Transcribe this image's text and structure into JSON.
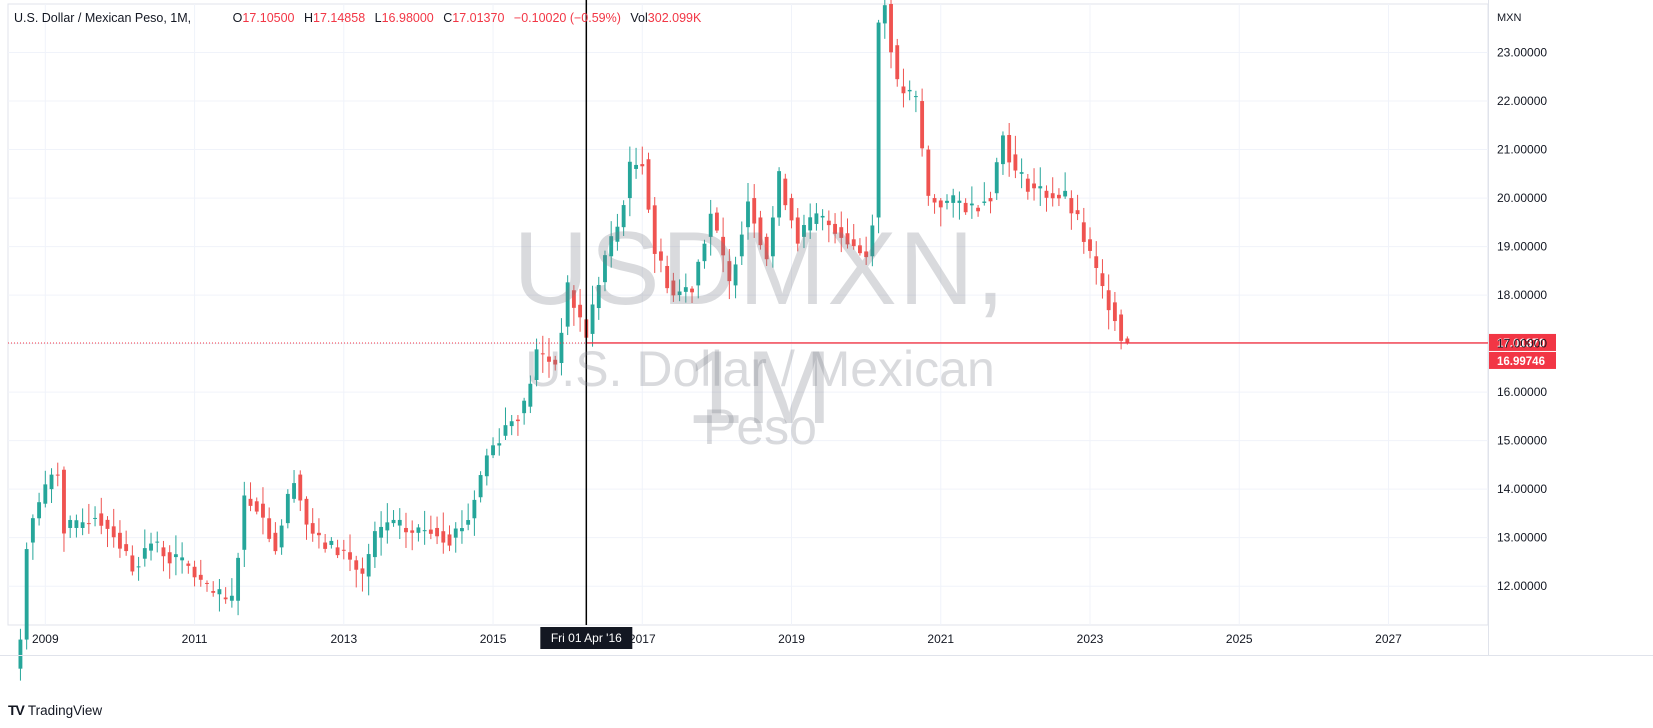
{
  "legend": {
    "symbol": "U.S. Dollar / Mexican Peso, 1M,",
    "open_label": "O",
    "open": "17.10500",
    "high_label": "H",
    "high": "17.14858",
    "low_label": "L",
    "low": "16.98000",
    "close_label": "C",
    "close": "17.01370",
    "change": "−0.10020 (−0.59%)",
    "vol_label": "Vol",
    "vol": "302.099K"
  },
  "watermark": {
    "symbol": "USDMXN, 1M",
    "description": "U.S. Dollar / Mexican Peso"
  },
  "currency": "MXN",
  "brand": {
    "logo": "TV",
    "name": "TradingView"
  },
  "colors": {
    "up": "#26a69a",
    "down": "#ef5350",
    "price_line": "#f23645",
    "grid": "#f0f3fa",
    "crosshair": "#000000"
  },
  "chart_data": {
    "type": "candlestick",
    "interval": "1M",
    "x_tick_labels": [
      "2009",
      "2011",
      "2013",
      "2015",
      "2017",
      "2019",
      "2021",
      "2023",
      "2025",
      "2027"
    ],
    "y_tick_labels": [
      "12.00000",
      "13.00000",
      "14.00000",
      "15.00000",
      "16.00000",
      "17.00000",
      "18.00000",
      "19.00000",
      "20.00000",
      "21.00000",
      "22.00000",
      "23.00000"
    ],
    "y_range": [
      11.2,
      24.0
    ],
    "x_range": [
      "2008-07",
      "2028-05"
    ],
    "price_line": {
      "value": 17.0137,
      "label": "17.01370"
    },
    "crosshair": {
      "date": "2016-04",
      "label": "Fri 01 Apr '16"
    },
    "secondary_label": {
      "value": 16.99746,
      "label": "16.99746"
    },
    "anchors": [
      [
        "2008-09",
        10.9
      ],
      [
        "2008-10",
        12.9
      ],
      [
        "2008-11",
        13.4
      ],
      [
        "2009-02",
        14.3
      ],
      [
        "2009-03",
        14.4
      ],
      [
        "2009-04",
        13.2
      ],
      [
        "2009-06",
        13.2
      ],
      [
        "2009-09",
        13.5
      ],
      [
        "2009-12",
        13.1
      ],
      [
        "2010-03",
        12.4
      ],
      [
        "2010-06",
        12.9
      ],
      [
        "2010-09",
        12.6
      ],
      [
        "2010-12",
        12.4
      ],
      [
        "2011-03",
        11.9
      ],
      [
        "2011-06",
        11.7
      ],
      [
        "2011-07",
        11.7
      ],
      [
        "2011-09",
        13.8
      ],
      [
        "2011-11",
        13.7
      ],
      [
        "2012-02",
        12.8
      ],
      [
        "2012-05",
        14.3
      ],
      [
        "2012-07",
        13.3
      ],
      [
        "2012-09",
        12.9
      ],
      [
        "2013-01",
        12.7
      ],
      [
        "2013-04",
        12.2
      ],
      [
        "2013-06",
        13.0
      ],
      [
        "2013-08",
        13.3
      ],
      [
        "2013-12",
        13.1
      ],
      [
        "2014-03",
        13.2
      ],
      [
        "2014-06",
        13.0
      ],
      [
        "2014-09",
        13.4
      ],
      [
        "2014-12",
        14.7
      ],
      [
        "2015-03",
        15.3
      ],
      [
        "2015-06",
        15.7
      ],
      [
        "2015-08",
        16.8
      ],
      [
        "2015-11",
        16.6
      ],
      [
        "2016-01",
        18.1
      ],
      [
        "2016-04",
        17.2
      ],
      [
        "2016-07",
        18.8
      ],
      [
        "2016-09",
        19.4
      ],
      [
        "2016-11",
        20.6
      ],
      [
        "2017-01",
        20.8
      ],
      [
        "2017-03",
        18.9
      ],
      [
        "2017-06",
        18.0
      ],
      [
        "2017-09",
        18.2
      ],
      [
        "2017-12",
        19.7
      ],
      [
        "2018-03",
        18.2
      ],
      [
        "2018-06",
        20.0
      ],
      [
        "2018-09",
        18.8
      ],
      [
        "2018-11",
        20.4
      ],
      [
        "2019-02",
        19.2
      ],
      [
        "2019-05",
        19.6
      ],
      [
        "2019-08",
        19.4
      ],
      [
        "2019-12",
        18.9
      ],
      [
        "2020-01",
        18.8
      ],
      [
        "2020-02",
        19.6
      ],
      [
        "2020-03",
        23.6
      ],
      [
        "2020-04",
        24.0
      ],
      [
        "2020-06",
        22.3
      ],
      [
        "2020-09",
        22.0
      ],
      [
        "2020-11",
        20.0
      ],
      [
        "2021-01",
        19.9
      ],
      [
        "2021-04",
        19.9
      ],
      [
        "2021-06",
        19.8
      ],
      [
        "2021-09",
        20.1
      ],
      [
        "2021-11",
        21.3
      ],
      [
        "2022-01",
        20.5
      ],
      [
        "2022-04",
        20.2
      ],
      [
        "2022-06",
        20.1
      ],
      [
        "2022-09",
        20.0
      ],
      [
        "2022-11",
        19.5
      ],
      [
        "2023-01",
        18.8
      ],
      [
        "2023-03",
        18.1
      ],
      [
        "2023-05",
        17.6
      ],
      [
        "2023-06",
        17.1
      ],
      [
        "2023-07",
        17.01
      ]
    ],
    "last_candle": {
      "date": "2023-07",
      "open": 17.105,
      "high": 17.14858,
      "low": 16.98,
      "close": 17.0137
    }
  }
}
